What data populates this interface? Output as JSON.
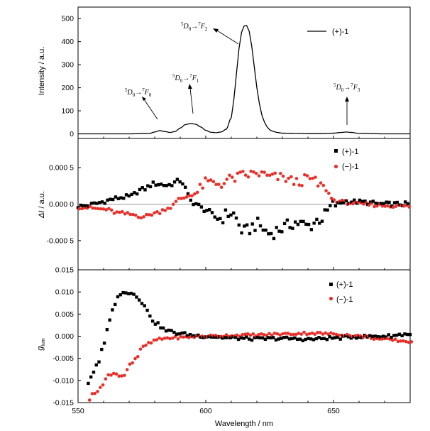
{
  "colors": {
    "black_series": "#000000",
    "red_series": "#e8302a",
    "zero_line": "#999999"
  },
  "chart_data": [
    {
      "type": "line",
      "panel": "emission",
      "ylabel": "Intensity / a.u.",
      "xlim": [
        550,
        680
      ],
      "ylim": [
        -20,
        550
      ],
      "y_ticks": [
        "0",
        "100",
        "200",
        "300",
        "400",
        "500"
      ],
      "y_tick_values": [
        0,
        100,
        200,
        300,
        400,
        500
      ],
      "series": [
        {
          "name": "(+)-1",
          "x": [
            550,
            570,
            578,
            580,
            582,
            584,
            586,
            588,
            590,
            592,
            594,
            596,
            598,
            600,
            602,
            604,
            606,
            608,
            610,
            611,
            612,
            613,
            614,
            615,
            616,
            617,
            618,
            619,
            620,
            621,
            622,
            623,
            624,
            625,
            626,
            628,
            630,
            635,
            640,
            645,
            650,
            653,
            655,
            657,
            660,
            670,
            680
          ],
          "y": [
            0,
            0,
            2,
            8,
            14,
            10,
            6,
            10,
            25,
            40,
            45,
            42,
            30,
            15,
            7,
            5,
            8,
            20,
            70,
            150,
            260,
            370,
            440,
            468,
            470,
            445,
            380,
            290,
            200,
            130,
            80,
            50,
            30,
            18,
            12,
            6,
            3,
            2,
            1,
            1,
            3,
            6,
            8,
            6,
            2,
            0,
            0
          ]
        }
      ],
      "annotations": [
        {
          "super": "5",
          "main": "D",
          "sub": "0",
          "arrow": "→",
          "super2": "7",
          "main2": "F",
          "sub2": "0"
        },
        {
          "super": "5",
          "main": "D",
          "sub": "0",
          "arrow": "→",
          "super2": "7",
          "main2": "F",
          "sub2": "1"
        },
        {
          "super": "5",
          "main": "D",
          "sub": "0",
          "arrow": "→",
          "super2": "7",
          "main2": "F",
          "sub2": "2"
        },
        {
          "super": "5",
          "main": "D",
          "sub": "0",
          "arrow": "→",
          "super2": "7",
          "main2": "F",
          "sub2": "3"
        }
      ]
    },
    {
      "type": "scatter",
      "panel": "delta_intensity",
      "ylabel_main": "ΔI",
      "ylabel_unit": " / a.u.",
      "xlim": [
        550,
        680
      ],
      "ylim": [
        -0.0009,
        0.0009
      ],
      "y_ticks": [
        "0.000 5",
        "0.000 0",
        "-0.000 5"
      ],
      "y_tick_values": [
        0.0005,
        0.0,
        -0.0005
      ],
      "series": [
        {
          "name": "(+)-1",
          "x": [
            550,
            570,
            575,
            580,
            585,
            590,
            595,
            600,
            605,
            610,
            615,
            620,
            625,
            630,
            635,
            640,
            645,
            650,
            655,
            660,
            670,
            680
          ],
          "y": [
            -3e-05,
            0.0001,
            0.0002,
            0.00028,
            0.00026,
            0.00032,
            2e-05,
            -8e-05,
            -0.0002,
            -0.00012,
            -0.00038,
            -0.00028,
            -0.0004,
            -0.00033,
            -0.00025,
            -0.0003,
            -0.0002,
            -2e-05,
            4e-05,
            3e-05,
            0.0,
            0.0
          ]
        },
        {
          "name": "(−)-1",
          "x": [
            550,
            560,
            565,
            570,
            575,
            580,
            585,
            590,
            595,
            600,
            605,
            610,
            615,
            620,
            625,
            630,
            635,
            640,
            645,
            650,
            655,
            660,
            670,
            680
          ],
          "y": [
            -4e-05,
            -7e-05,
            -0.00012,
            -0.00014,
            -0.00017,
            -0.00012,
            -5e-05,
            8e-05,
            0.00014,
            0.0003,
            0.00028,
            0.00035,
            0.0004,
            0.00042,
            0.00037,
            0.00036,
            0.0003,
            0.00035,
            0.00025,
            5e-05,
            2e-05,
            0.0,
            -2e-05,
            -3e-05
          ]
        }
      ]
    },
    {
      "type": "scatter",
      "panel": "glum",
      "ylabel_main": "g",
      "ylabel_sub": "lum",
      "xlabel": "Wavelength / nm",
      "xlim": [
        550,
        680
      ],
      "ylim": [
        -0.015,
        0.015
      ],
      "x_ticks": [
        "550",
        "600",
        "650"
      ],
      "x_tick_values": [
        550,
        600,
        650
      ],
      "y_ticks": [
        "0.015",
        "0.010",
        "0.005",
        "0.000",
        "-0.005",
        "-0.010",
        "-0.015"
      ],
      "y_tick_values": [
        0.015,
        0.01,
        0.005,
        0.0,
        -0.005,
        -0.01,
        -0.015
      ],
      "series": [
        {
          "name": "(+)-1",
          "x": [
            554,
            556,
            558,
            560,
            562,
            564,
            566,
            568,
            570,
            572,
            574,
            576,
            578,
            580,
            585,
            590,
            595,
            600,
            610,
            620,
            630,
            640,
            650,
            660,
            670,
            680
          ],
          "y": [
            -0.0105,
            -0.008,
            -0.006,
            -0.002,
            0.003,
            0.007,
            0.009,
            0.0102,
            0.0098,
            0.0095,
            0.0085,
            0.0068,
            0.0048,
            0.003,
            0.0012,
            0.0006,
            0.0002,
            0.0,
            -0.0004,
            -0.0006,
            -0.0005,
            -0.0007,
            -0.0004,
            -0.0001,
            0.0,
            0.0005
          ]
        },
        {
          "name": "(−)-1",
          "x": [
            554,
            556,
            558,
            560,
            562,
            564,
            566,
            568,
            570,
            572,
            574,
            576,
            578,
            580,
            585,
            590,
            595,
            600,
            610,
            620,
            630,
            640,
            650,
            660,
            670,
            680
          ],
          "y": [
            -0.014,
            -0.013,
            -0.011,
            -0.0105,
            -0.008,
            -0.0085,
            -0.0095,
            -0.008,
            -0.006,
            -0.005,
            -0.0035,
            -0.002,
            -0.0015,
            -0.0008,
            -0.0004,
            -0.0003,
            -0.0001,
            0.0,
            0.0002,
            0.0003,
            0.0005,
            0.0007,
            0.0005,
            0.0,
            -0.0008,
            -0.0012
          ]
        }
      ]
    }
  ]
}
